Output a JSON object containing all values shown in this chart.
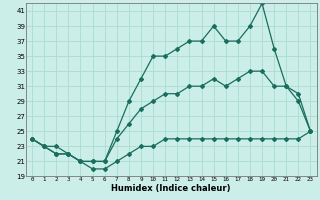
{
  "xlabel": "Humidex (Indice chaleur)",
  "ylabel": "",
  "bg_color": "#cceee8",
  "grid_color": "#aaddcc",
  "line_color": "#1a6e5e",
  "xlim": [
    -0.5,
    23.5
  ],
  "ylim": [
    19,
    42
  ],
  "xticks": [
    0,
    1,
    2,
    3,
    4,
    5,
    6,
    7,
    8,
    9,
    10,
    11,
    12,
    13,
    14,
    15,
    16,
    17,
    18,
    19,
    20,
    21,
    22,
    23
  ],
  "yticks": [
    19,
    21,
    23,
    25,
    27,
    29,
    31,
    33,
    35,
    37,
    39,
    41
  ],
  "line_max": [
    24,
    23,
    23,
    22,
    21,
    21,
    21,
    25,
    29,
    32,
    35,
    35,
    36,
    37,
    37,
    39,
    37,
    37,
    39,
    42,
    36,
    31,
    29,
    25
  ],
  "line_min": [
    24,
    23,
    22,
    22,
    21,
    20,
    20,
    21,
    22,
    23,
    23,
    24,
    24,
    24,
    24,
    24,
    24,
    24,
    24,
    24,
    24,
    24,
    24,
    25
  ],
  "line_mean": [
    24,
    23,
    22,
    22,
    21,
    21,
    21,
    24,
    26,
    28,
    29,
    30,
    30,
    31,
    31,
    32,
    31,
    32,
    33,
    33,
    31,
    31,
    30,
    25
  ]
}
